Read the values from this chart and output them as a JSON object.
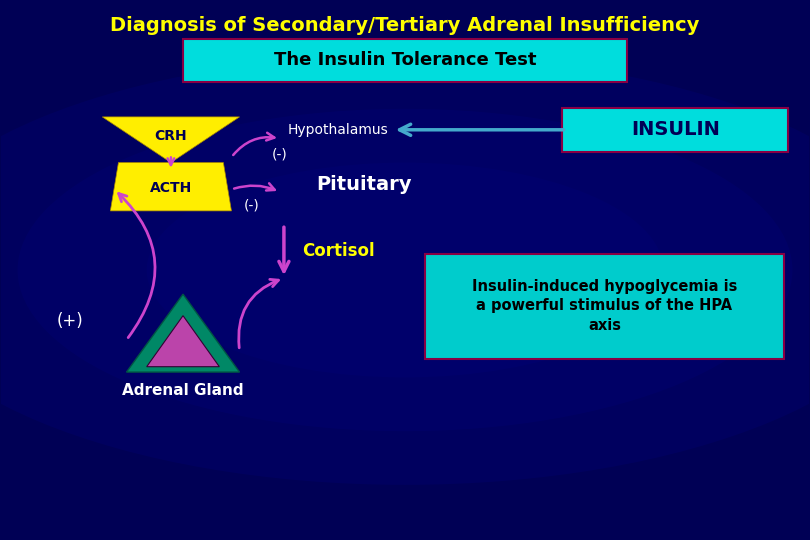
{
  "title": "Diagnosis of Secondary/Tertiary Adrenal Insufficiency",
  "subtitle": "The Insulin Tolerance Test",
  "bg_color": "#000055",
  "title_color": "#FFFF00",
  "subtitle_bg": "#00DDDD",
  "subtitle_text_color": "#000000",
  "crh_acth_shape_color": "#FFEE00",
  "crh_text": "CRH",
  "acth_text": "ACTH",
  "hypothalamus_text": "Hypothalamus",
  "hypothalamus_text_color": "#FFFFFF",
  "pituitary_text": "Pituitary",
  "pituitary_text_color": "#FFFFFF",
  "cortisol_text": "Cortisol",
  "cortisol_text_color": "#FFFF00",
  "neg1_text": "(-)",
  "neg2_text": "(-)",
  "neg_text_color": "#FFFFFF",
  "plus_text": "(+)",
  "plus_text_color": "#FFFFFF",
  "insulin_box_text": "INSULIN",
  "insulin_box_bg": "#00DDDD",
  "insulin_box_text_color": "#000055",
  "info_box_text": "Insulin-induced hypoglycemia is\na powerful stimulus of the HPA\naxis",
  "info_box_bg": "#00CCCC",
  "info_box_text_color": "#000000",
  "adrenal_text": "Adrenal Gland",
  "adrenal_text_color": "#FFFFFF",
  "arrow_color_blue": "#44AACC",
  "arrow_color_pink": "#CC44CC",
  "arrow_color_cortisol": "#CC44CC",
  "adrenal_outer_color": "#008866",
  "adrenal_inner_color": "#BB44AA"
}
